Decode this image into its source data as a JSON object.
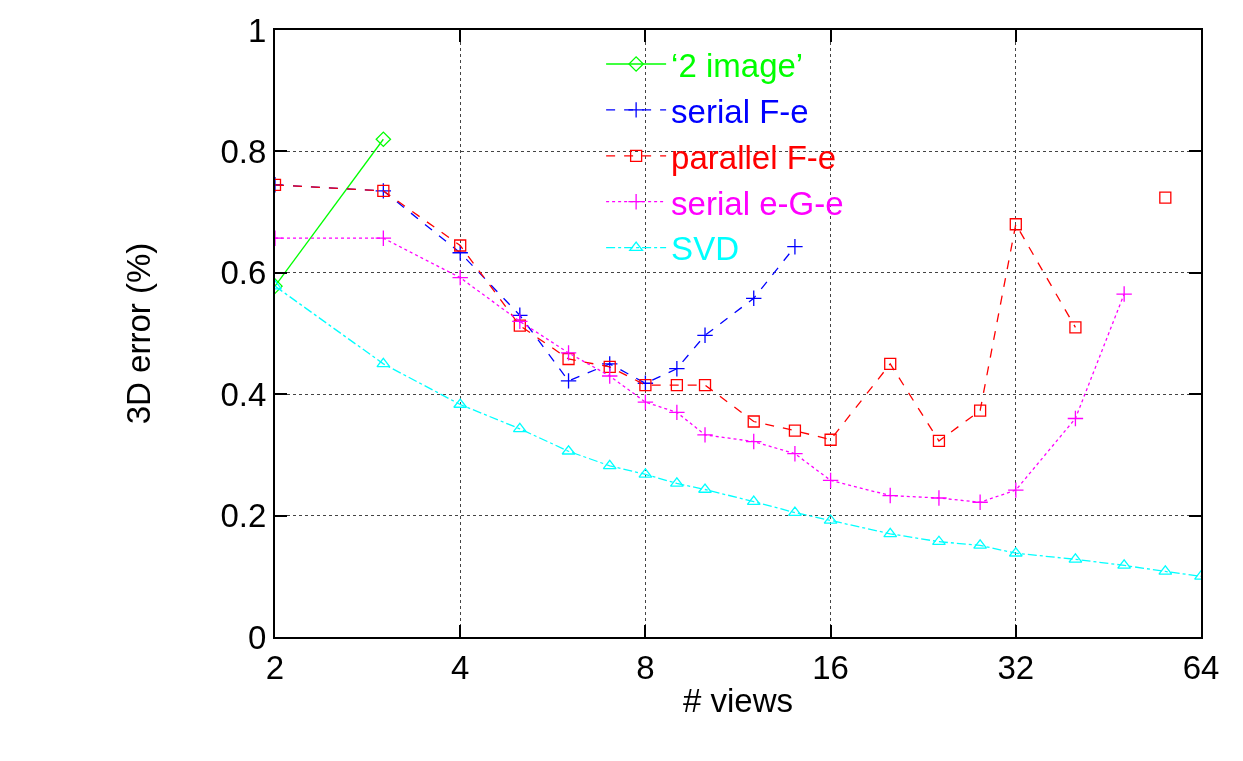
{
  "chart_data": {
    "type": "line",
    "xlabel": "# views",
    "ylabel": "3D error (%)",
    "x": [
      2,
      3,
      4,
      5,
      6,
      7,
      8,
      9,
      10,
      12,
      14,
      16,
      20,
      24,
      28,
      32,
      40,
      48,
      56,
      64
    ],
    "series": [
      {
        "name": "‘2 image’",
        "color": "#00ff00",
        "marker": "diamond",
        "line_style": "solid",
        "x": [
          2,
          3
        ],
        "values": [
          0.578,
          0.82
        ]
      },
      {
        "name": "serial F-e",
        "color": "#0000ff",
        "marker": "cross",
        "line_style": "dashed",
        "x": [
          2,
          3,
          4,
          5,
          6,
          7,
          8,
          9,
          10,
          12,
          14
        ],
        "values": [
          0.745,
          0.735,
          0.633,
          0.53,
          0.422,
          0.45,
          0.418,
          0.442,
          0.497,
          0.558,
          0.643
        ]
      },
      {
        "name": "parallel F-e",
        "color": "#ff0000",
        "marker": "square",
        "line_style": "dashed",
        "x": [
          2,
          3,
          4,
          5,
          6,
          7,
          8,
          9,
          10,
          12,
          14,
          16,
          20,
          24,
          28,
          32,
          40,
          48,
          56
        ],
        "values": [
          0.745,
          0.735,
          0.645,
          0.513,
          0.458,
          0.445,
          0.415,
          0.415,
          0.415,
          0.355,
          0.34,
          0.325,
          0.45,
          0.323,
          0.373,
          0.68,
          0.51,
          null,
          0.724
        ]
      },
      {
        "name": "serial e-G-e",
        "color": "#ff00ff",
        "marker": "cross",
        "line_style": "dotted",
        "x": [
          2,
          3,
          4,
          5,
          6,
          7,
          8,
          9,
          10,
          12,
          14,
          16,
          20,
          24,
          28,
          32,
          40,
          48
        ],
        "values": [
          0.657,
          0.657,
          0.592,
          0.52,
          0.468,
          0.43,
          0.387,
          0.37,
          0.333,
          0.322,
          0.302,
          0.258,
          0.233,
          0.229,
          0.222,
          0.242,
          0.36,
          0.565
        ]
      },
      {
        "name": "SVD",
        "color": "#00ffff",
        "marker": "triangle",
        "line_style": "dashdot",
        "values": [
          0.578,
          0.45,
          0.383,
          0.343,
          0.306,
          0.282,
          0.268,
          0.253,
          0.243,
          0.223,
          0.205,
          0.192,
          0.17,
          0.157,
          0.151,
          0.138,
          0.128,
          0.118,
          0.108,
          0.1
        ]
      }
    ],
    "xlim": [
      2,
      64
    ],
    "xticks": [
      2,
      4,
      8,
      16,
      32,
      64
    ],
    "log": "x",
    "ylim": [
      0,
      1
    ],
    "yticks": [
      0,
      0.2,
      0.4,
      0.6,
      0.8,
      1
    ],
    "grid": true,
    "legend": "top"
  }
}
